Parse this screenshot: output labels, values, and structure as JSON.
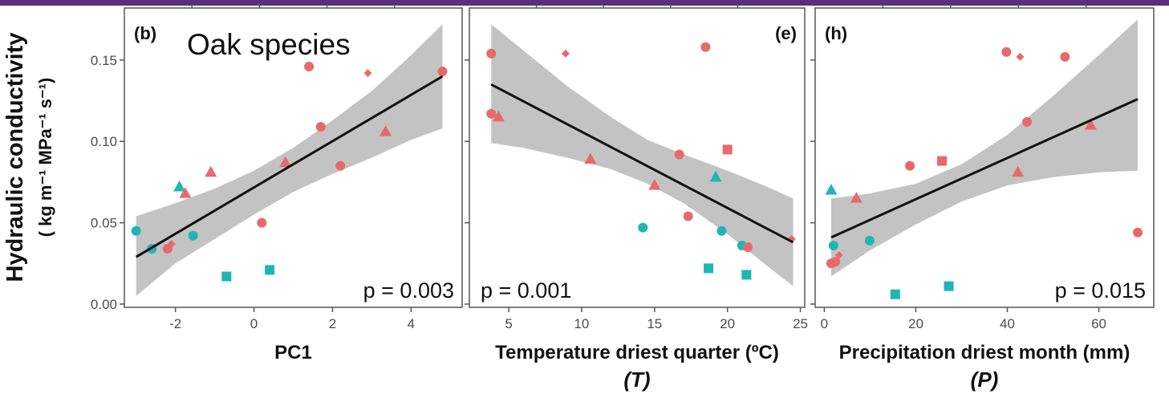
{
  "overlay_label": "Oak species",
  "y_axis": {
    "title_main": "Hydraulic conductivity",
    "title_units": "( kg m⁻¹ MPa⁻¹ s⁻¹)",
    "ticks": [
      "0.00",
      "0.05",
      "0.10",
      "0.15"
    ]
  },
  "colors": {
    "red_group": "#e8696a",
    "teal_group": "#1fb5b5",
    "ci_band": "#bdbdbd",
    "fit_line": "#111111"
  },
  "chart_data": [
    {
      "type": "scatter",
      "panel": "(b)",
      "xlabel": "PC1",
      "xlabel_sub": "",
      "x_ticks": [
        "-2",
        "0",
        "2",
        "4"
      ],
      "xlim": [
        -3.3,
        5.3
      ],
      "ylim": [
        -0.002,
        0.182
      ],
      "p_value": "p = 0.003",
      "p_position": "bottom-right",
      "fit": {
        "x": [
          -3.0,
          4.8
        ],
        "y": [
          0.029,
          0.14
        ]
      },
      "band": {
        "x": [
          -3.0,
          -2.0,
          -1.0,
          0.0,
          1.0,
          2.0,
          3.0,
          4.0,
          4.8
        ],
        "lo": [
          0.005,
          0.025,
          0.04,
          0.055,
          0.069,
          0.08,
          0.09,
          0.101,
          0.108
        ],
        "hi": [
          0.054,
          0.062,
          0.071,
          0.082,
          0.096,
          0.113,
          0.131,
          0.153,
          0.172
        ]
      },
      "points": [
        {
          "x": -3.0,
          "y": 0.045,
          "shape": "circle",
          "group": "teal"
        },
        {
          "x": -2.6,
          "y": 0.034,
          "shape": "circle",
          "group": "teal"
        },
        {
          "x": -2.2,
          "y": 0.034,
          "shape": "circle",
          "group": "red"
        },
        {
          "x": -2.1,
          "y": 0.037,
          "shape": "diamond",
          "group": "red"
        },
        {
          "x": -1.9,
          "y": 0.072,
          "shape": "triangle",
          "group": "teal"
        },
        {
          "x": -1.75,
          "y": 0.068,
          "shape": "triangle",
          "group": "red"
        },
        {
          "x": -1.55,
          "y": 0.042,
          "shape": "circle",
          "group": "teal"
        },
        {
          "x": -1.1,
          "y": 0.081,
          "shape": "triangle",
          "group": "red"
        },
        {
          "x": -0.7,
          "y": 0.017,
          "shape": "square",
          "group": "teal"
        },
        {
          "x": 0.2,
          "y": 0.05,
          "shape": "circle",
          "group": "red"
        },
        {
          "x": 0.4,
          "y": 0.021,
          "shape": "square",
          "group": "teal"
        },
        {
          "x": 0.8,
          "y": 0.087,
          "shape": "triangle",
          "group": "red"
        },
        {
          "x": 1.4,
          "y": 0.146,
          "shape": "circle",
          "group": "red"
        },
        {
          "x": 1.7,
          "y": 0.109,
          "shape": "circle",
          "group": "red"
        },
        {
          "x": 2.2,
          "y": 0.085,
          "shape": "circle",
          "group": "red"
        },
        {
          "x": 2.9,
          "y": 0.142,
          "shape": "diamond",
          "group": "red"
        },
        {
          "x": 3.35,
          "y": 0.106,
          "shape": "triangle",
          "group": "red"
        },
        {
          "x": 4.8,
          "y": 0.143,
          "shape": "circle",
          "group": "red"
        }
      ]
    },
    {
      "type": "scatter",
      "panel": "(e)",
      "xlabel": "Temperature driest quarter (ºC)",
      "xlabel_sub": "(T)",
      "x_ticks": [
        "5",
        "10",
        "15",
        "20",
        "25"
      ],
      "xlim": [
        2.3,
        25.3
      ],
      "ylim": [
        -0.002,
        0.182
      ],
      "p_value": "p = 0.001",
      "p_position": "bottom-left",
      "fit": {
        "x": [
          3.8,
          24.5
        ],
        "y": [
          0.135,
          0.038
        ]
      },
      "band": {
        "x": [
          3.8,
          6,
          9,
          12,
          14.5,
          17,
          20,
          22.5,
          24.5
        ],
        "lo": [
          0.099,
          0.096,
          0.09,
          0.083,
          0.074,
          0.062,
          0.043,
          0.025,
          0.011
        ],
        "hi": [
          0.172,
          0.156,
          0.134,
          0.115,
          0.101,
          0.092,
          0.082,
          0.073,
          0.065
        ]
      },
      "points": [
        {
          "x": 3.8,
          "y": 0.154,
          "shape": "circle",
          "group": "red"
        },
        {
          "x": 3.8,
          "y": 0.117,
          "shape": "circle",
          "group": "red"
        },
        {
          "x": 4.3,
          "y": 0.115,
          "shape": "triangle",
          "group": "red"
        },
        {
          "x": 8.9,
          "y": 0.154,
          "shape": "diamond",
          "group": "red"
        },
        {
          "x": 10.6,
          "y": 0.089,
          "shape": "triangle",
          "group": "red"
        },
        {
          "x": 14.2,
          "y": 0.047,
          "shape": "circle",
          "group": "teal"
        },
        {
          "x": 15.0,
          "y": 0.073,
          "shape": "triangle",
          "group": "red"
        },
        {
          "x": 16.7,
          "y": 0.092,
          "shape": "circle",
          "group": "red"
        },
        {
          "x": 17.3,
          "y": 0.054,
          "shape": "circle",
          "group": "red"
        },
        {
          "x": 18.5,
          "y": 0.158,
          "shape": "circle",
          "group": "red"
        },
        {
          "x": 18.7,
          "y": 0.022,
          "shape": "square",
          "group": "teal"
        },
        {
          "x": 19.2,
          "y": 0.078,
          "shape": "triangle",
          "group": "teal"
        },
        {
          "x": 19.6,
          "y": 0.045,
          "shape": "circle",
          "group": "teal"
        },
        {
          "x": 20.0,
          "y": 0.095,
          "shape": "square",
          "group": "red"
        },
        {
          "x": 21.0,
          "y": 0.036,
          "shape": "circle",
          "group": "teal"
        },
        {
          "x": 21.3,
          "y": 0.018,
          "shape": "square",
          "group": "teal"
        },
        {
          "x": 21.4,
          "y": 0.035,
          "shape": "circle",
          "group": "red"
        },
        {
          "x": 24.4,
          "y": 0.04,
          "shape": "diamond",
          "group": "red"
        }
      ]
    },
    {
      "type": "scatter",
      "panel": "(h)",
      "xlabel": "Precipitation driest month (mm)",
      "xlabel_sub": "(P)",
      "x_ticks": [
        "0",
        "20",
        "40",
        "60"
      ],
      "xlim": [
        -2,
        72
      ],
      "ylim": [
        -0.002,
        0.182
      ],
      "p_value": "p = 0.015",
      "p_position": "bottom-right",
      "fit": {
        "x": [
          1.5,
          68.5
        ],
        "y": [
          0.041,
          0.126
        ]
      },
      "band": {
        "x": [
          1.5,
          10,
          20,
          30,
          40,
          50,
          60,
          68.5
        ],
        "lo": [
          0.017,
          0.033,
          0.049,
          0.063,
          0.073,
          0.078,
          0.081,
          0.082
        ],
        "hi": [
          0.065,
          0.068,
          0.074,
          0.086,
          0.104,
          0.128,
          0.153,
          0.175
        ]
      },
      "points": [
        {
          "x": 1.5,
          "y": 0.07,
          "shape": "triangle",
          "group": "teal"
        },
        {
          "x": 1.5,
          "y": 0.025,
          "shape": "circle",
          "group": "red"
        },
        {
          "x": 2.0,
          "y": 0.036,
          "shape": "circle",
          "group": "teal"
        },
        {
          "x": 2.4,
          "y": 0.026,
          "shape": "circle",
          "group": "red"
        },
        {
          "x": 3.2,
          "y": 0.03,
          "shape": "diamond",
          "group": "red"
        },
        {
          "x": 7.0,
          "y": 0.065,
          "shape": "triangle",
          "group": "red"
        },
        {
          "x": 9.9,
          "y": 0.039,
          "shape": "circle",
          "group": "teal"
        },
        {
          "x": 15.5,
          "y": 0.006,
          "shape": "square",
          "group": "teal"
        },
        {
          "x": 18.7,
          "y": 0.085,
          "shape": "circle",
          "group": "red"
        },
        {
          "x": 25.7,
          "y": 0.088,
          "shape": "square",
          "group": "red"
        },
        {
          "x": 27.2,
          "y": 0.011,
          "shape": "square",
          "group": "teal"
        },
        {
          "x": 39.8,
          "y": 0.155,
          "shape": "circle",
          "group": "red"
        },
        {
          "x": 42.3,
          "y": 0.081,
          "shape": "triangle",
          "group": "red"
        },
        {
          "x": 42.8,
          "y": 0.152,
          "shape": "diamond",
          "group": "red"
        },
        {
          "x": 44.3,
          "y": 0.112,
          "shape": "circle",
          "group": "red"
        },
        {
          "x": 52.6,
          "y": 0.152,
          "shape": "circle",
          "group": "red"
        },
        {
          "x": 58.2,
          "y": 0.11,
          "shape": "triangle",
          "group": "red"
        },
        {
          "x": 68.5,
          "y": 0.044,
          "shape": "circle",
          "group": "red"
        }
      ]
    }
  ]
}
